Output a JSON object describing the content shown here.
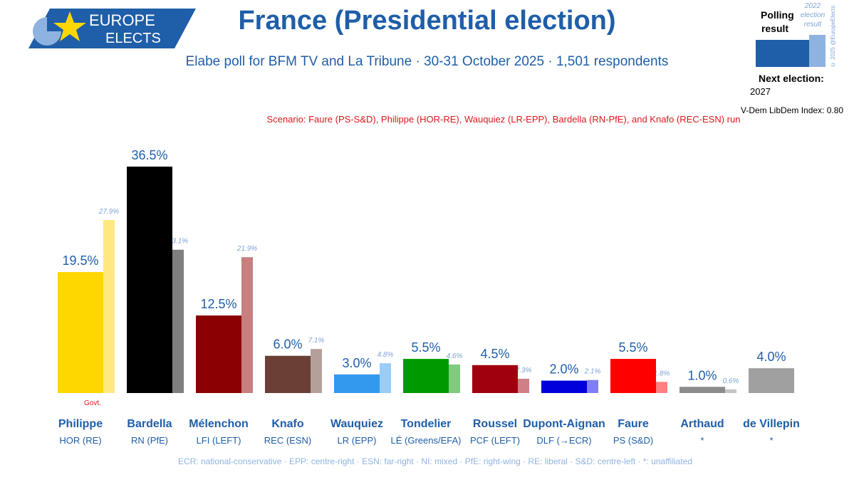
{
  "header": {
    "logo_line1": "EUROPE",
    "logo_line2": "ELECTS",
    "title": "France (Presidential election)",
    "subtitle": "Elabe poll for BFM TV and La Tribune · 30-31 October 2025 · 1,501 respondents",
    "scenario": "Scenario: Faure (PS-S&D), Philippe (HOR-RE), Wauquiez (LR-EPP), Bardella (RN-PfE), and Knafo (REC-ESN) run"
  },
  "legend": {
    "polling_result": "Polling result",
    "prev_result": "2022 election result",
    "copyright": "© 2025 @EuropeElects",
    "next_election_label": "Next election:",
    "next_election_year": "2027",
    "vdem": "V-Dem LibDem Index: 0.80"
  },
  "govt_label": "Govt.",
  "footer": "ECR: national-conservative · EPP: centre-right · ESN: far-right · NI: mixed · PfE: right-wing · RE: liberal · S&D: centre-left · *: unaffiliated",
  "colors": {
    "brand": "#1f5ea8",
    "scenario": "#d7191c"
  },
  "chart_data": {
    "type": "bar",
    "categories": [
      "Philippe",
      "Bardella",
      "Mélenchon",
      "Knafo",
      "Wauquiez",
      "Tondelier",
      "Roussel",
      "Dupont-Aignan",
      "Faure",
      "Arthaud",
      "de Villepin"
    ],
    "parties": [
      "HOR (RE)",
      "RN (PfE)",
      "LFI (LEFT)",
      "REC (ESN)",
      "LR (EPP)",
      "LÉ (Greens/EFA)",
      "PCF (LEFT)",
      "DLF (→ECR)",
      "PS (S&D)",
      "*",
      "*"
    ],
    "series": [
      {
        "name": "Polling result",
        "values": [
          19.5,
          36.5,
          12.5,
          6.0,
          3.0,
          5.5,
          4.5,
          2.0,
          5.5,
          1.0,
          4.0
        ],
        "labels": [
          "19.5%",
          "36.5%",
          "12.5%",
          "6.0%",
          "3.0%",
          "5.5%",
          "4.5%",
          "2.0%",
          "5.5%",
          "1.0%",
          "4.0%"
        ],
        "colors": [
          "#ffd700",
          "#000000",
          "#8b0000",
          "#6b3f35",
          "#3399ee",
          "#009a00",
          "#a0000d",
          "#0000dd",
          "#ff0000",
          "#8c8c8c",
          "#a0a0a0"
        ]
      },
      {
        "name": "2022 election result",
        "values": [
          27.9,
          23.1,
          21.9,
          7.1,
          4.8,
          4.6,
          2.3,
          2.1,
          1.8,
          0.6,
          null
        ],
        "labels": [
          "27.9%",
          "23.1%",
          "21.9%",
          "7.1%",
          "4.8%",
          "4.6%",
          "2.3%",
          "2.1%",
          "1.8%",
          "0.6%",
          ""
        ],
        "colors": [
          "#ffe880",
          "#7f7f7f",
          "#c77f7f",
          "#b49f9a",
          "#99ccf6",
          "#7fcc7f",
          "#cf7f86",
          "#7f7fee",
          "#ff7f7f",
          "#c5c5c5",
          "#cfcfcf"
        ]
      }
    ],
    "ylim": [
      0,
      36.5
    ]
  }
}
